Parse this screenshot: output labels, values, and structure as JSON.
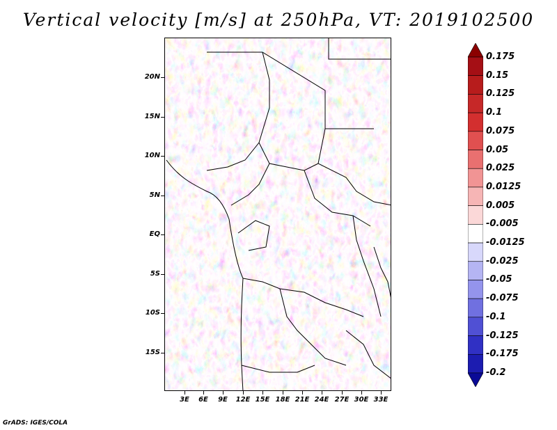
{
  "title": "Vertical velocity [m/s] at 250hPa, VT: 2019102500",
  "footer": "GrADS: IGES/COLA",
  "map": {
    "lat_labels": [
      "20N",
      "15N",
      "10N",
      "5N",
      "EQ",
      "5S",
      "10S",
      "15S"
    ],
    "lon_labels": [
      "3E",
      "6E",
      "9E",
      "12E",
      "15E",
      "18E",
      "21E",
      "24E",
      "27E",
      "30E",
      "33E"
    ]
  },
  "colorbar": {
    "labels": [
      "0.175",
      "0.15",
      "0.125",
      "0.1",
      "0.075",
      "0.05",
      "0.025",
      "0.0125",
      "0.005",
      "-0.005",
      "-0.0125",
      "-0.025",
      "-0.05",
      "-0.075",
      "-0.1",
      "-0.125",
      "-0.175",
      "-0.2"
    ],
    "colors": [
      "#a50f15",
      "#b71c1c",
      "#c62828",
      "#d32f2f",
      "#e05050",
      "#e97070",
      "#f19494",
      "#f6b5b5",
      "#fbd8d8",
      "#ffffff",
      "#d8d8fb",
      "#b5b5f3",
      "#9494ec",
      "#7070e0",
      "#5050d4",
      "#3030c4",
      "#1c1cb0",
      "#0a0a96"
    ]
  }
}
